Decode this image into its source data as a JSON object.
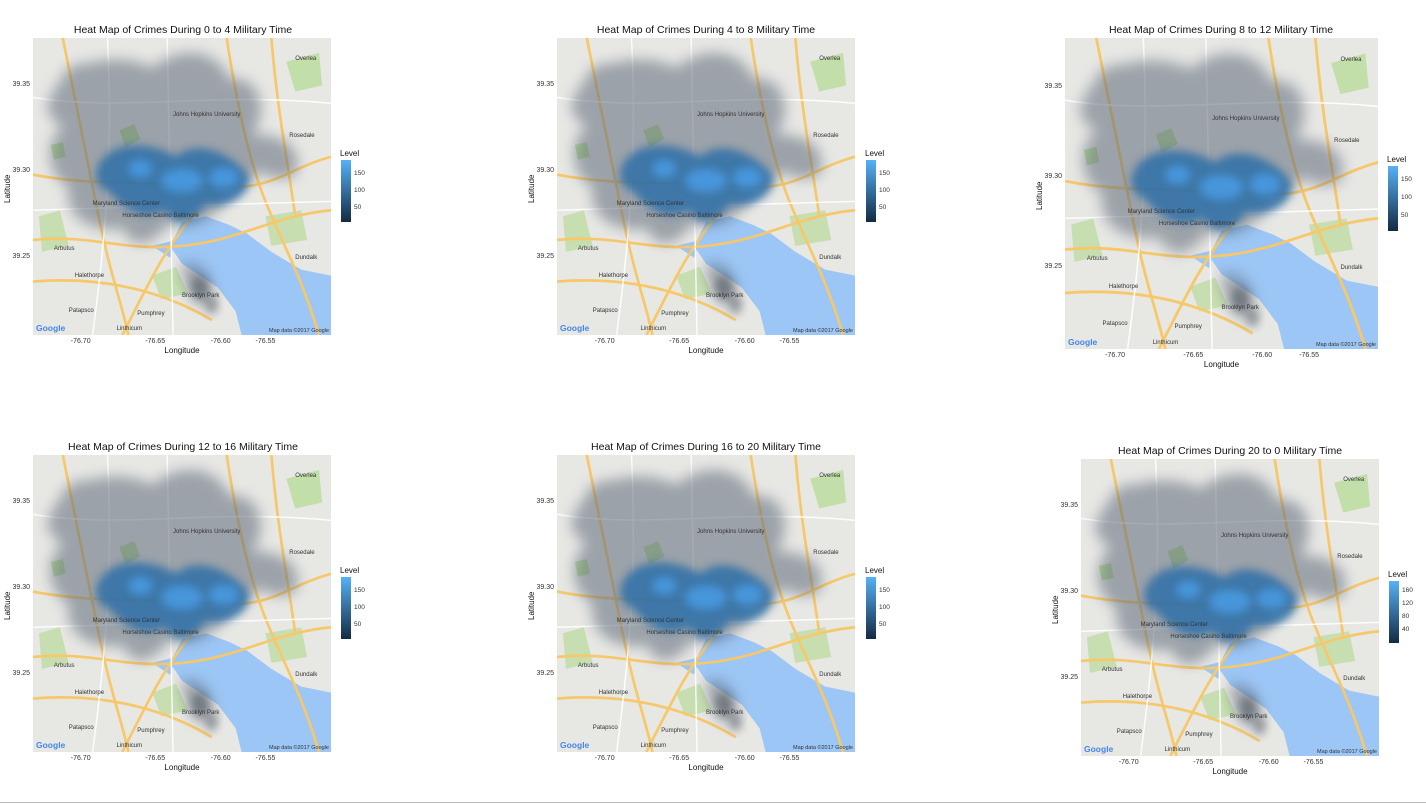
{
  "panels": [
    {
      "title": "Heat Map of Crimes During 0 to 4 Military Time",
      "legend_ticks": [
        "150",
        "100",
        "50"
      ]
    },
    {
      "title": "Heat Map of Crimes During 4 to 8 Military Time",
      "legend_ticks": [
        "150",
        "100",
        "50"
      ]
    },
    {
      "title": "Heat Map of Crimes During 8 to 12 Military Time",
      "legend_ticks": [
        "150",
        "100",
        "50"
      ]
    },
    {
      "title": "Heat Map of Crimes During 12 to 16 Military Time",
      "legend_ticks": [
        "150",
        "100",
        "50"
      ]
    },
    {
      "title": "Heat Map of Crimes During 16 to 20 Military Time",
      "legend_ticks": [
        "150",
        "100",
        "50"
      ]
    },
    {
      "title": "Heat Map of Crimes During 20 to 0 Military Time",
      "legend_ticks": [
        "160",
        "120",
        "80",
        "40"
      ]
    }
  ],
  "axes": {
    "xlabel": "Longitude",
    "ylabel": "Latitude",
    "x_ticks": [
      "-76.70",
      "-76.65",
      "-76.60",
      "-76.55"
    ],
    "y_ticks": [
      "39.35",
      "39.30",
      "39.25"
    ]
  },
  "legend_title": "Level",
  "map_credit": "Map data ©2017 Google",
  "google_logo": "Google",
  "place_labels": [
    "Johns Hopkins University",
    "Rosedale",
    "Maryland Science Center",
    "Horseshoe Casino Baltimore",
    "Arbutus",
    "Halethorpe",
    "Dundalk",
    "Brooklyn Park",
    "Patapsco",
    "Pumphrey",
    "Linthicum",
    "Overlea"
  ],
  "colors": {
    "legend_high": "#56b1f7",
    "legend_low": "#132b43",
    "heat": "#2f6fa8",
    "water": "#9cc6f5",
    "park": "#b9dc9a",
    "road": "#f7c86a"
  }
}
